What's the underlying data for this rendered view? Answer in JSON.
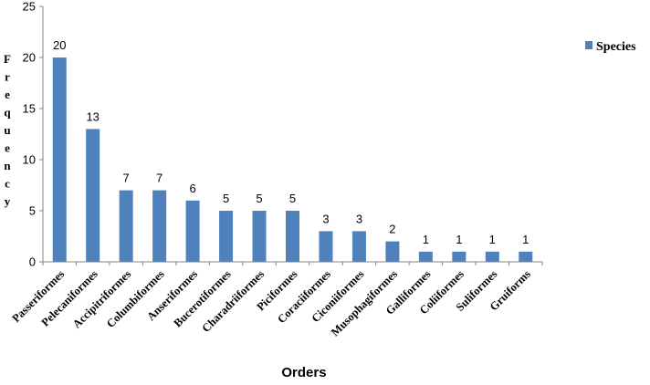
{
  "chart_data": {
    "type": "bar",
    "categories": [
      "Passeriformes",
      "Pelecaniformes",
      "Accipitriformes",
      "Columbiformes",
      "Anseriformes",
      "Bucerotiformes",
      "Charadriiformes",
      "Piciformes",
      "Coraciiformes",
      "Ciconiiformes",
      "Musophagiformes",
      "Galliformes",
      "Coliiformes",
      "Suliformes",
      "Gruiforms"
    ],
    "series": [
      {
        "name": "Species",
        "values": [
          20,
          13,
          7,
          7,
          6,
          5,
          5,
          5,
          3,
          3,
          2,
          1,
          1,
          1,
          1
        ]
      }
    ],
    "xlabel": "Orders",
    "ylabel": "Frequency",
    "ylim": [
      0,
      25
    ],
    "yticks": [
      0,
      5,
      10,
      15,
      20,
      25
    ],
    "legend_position": "right",
    "grid": false,
    "bar_color": "#4f81bd"
  }
}
